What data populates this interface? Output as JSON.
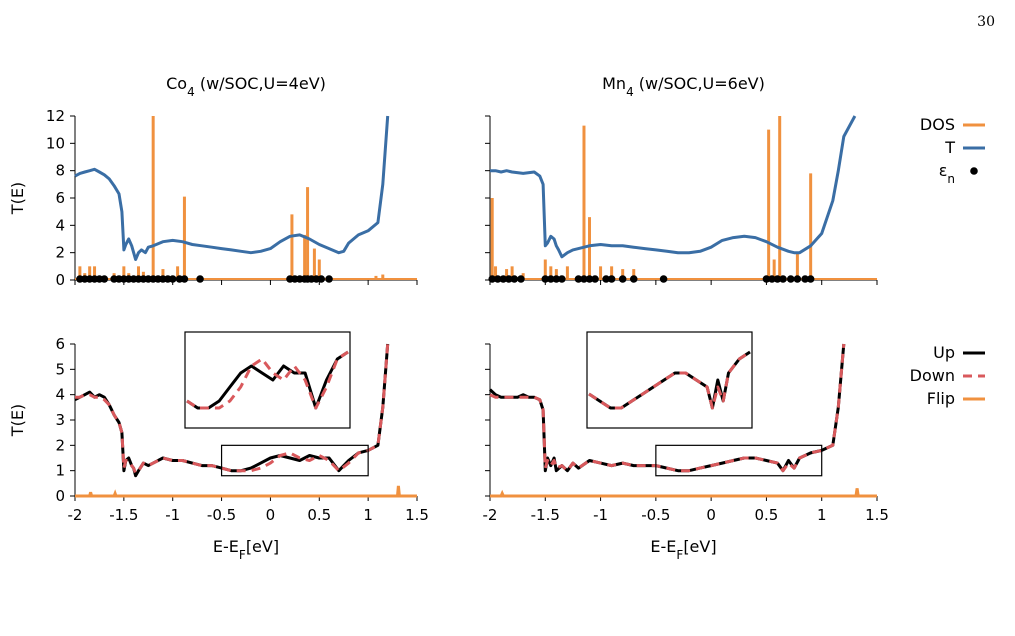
{
  "page_number": "30",
  "colors": {
    "dos": "#f0913f",
    "transmission": "#3a6ea5",
    "levels": "#000000",
    "up": "#000000",
    "down": "#d9595c",
    "flip": "#f0913f",
    "frame": "#000000"
  },
  "legends": {
    "top": [
      {
        "label": "DOS",
        "style": "orange-line"
      },
      {
        "label": "T",
        "style": "blue-line"
      },
      {
        "label": "ε",
        "sub": "n",
        "style": "black-dot"
      }
    ],
    "bottom": [
      {
        "label": "Up",
        "style": "black-solid"
      },
      {
        "label": "Down",
        "style": "red-dashed"
      },
      {
        "label": "Flip",
        "style": "orange-line"
      }
    ]
  },
  "chart_data": [
    {
      "id": "co4-top",
      "type": "line",
      "title": "Co",
      "title_sub": "4",
      "title_rest": " (w/SOC,U=4eV)",
      "xlabel": "",
      "ylabel": "T(E)",
      "xlim": [
        -2,
        1.5
      ],
      "ylim": [
        0,
        12
      ],
      "yticks": [
        "0",
        "2",
        "4",
        "6",
        "8",
        "10",
        "12"
      ],
      "xticks": [],
      "grid": false,
      "transmission": {
        "x": [
          -2.0,
          -1.95,
          -1.9,
          -1.85,
          -1.8,
          -1.75,
          -1.7,
          -1.65,
          -1.6,
          -1.55,
          -1.52,
          -1.5,
          -1.48,
          -1.45,
          -1.42,
          -1.38,
          -1.35,
          -1.32,
          -1.28,
          -1.25,
          -1.2,
          -1.1,
          -1.0,
          -0.9,
          -0.8,
          -0.7,
          -0.6,
          -0.5,
          -0.4,
          -0.3,
          -0.2,
          -0.1,
          0.0,
          0.1,
          0.2,
          0.3,
          0.4,
          0.5,
          0.6,
          0.7,
          0.75,
          0.8,
          0.9,
          1.0,
          1.1,
          1.15,
          1.2
        ],
        "y": [
          7.6,
          7.8,
          7.9,
          8.0,
          8.1,
          7.9,
          7.7,
          7.4,
          6.9,
          6.3,
          5.0,
          2.2,
          2.6,
          3.0,
          2.5,
          1.5,
          2.0,
          2.2,
          2.0,
          2.4,
          2.5,
          2.8,
          2.9,
          2.8,
          2.6,
          2.5,
          2.4,
          2.3,
          2.2,
          2.1,
          2.0,
          2.1,
          2.3,
          2.8,
          3.2,
          3.3,
          3.0,
          2.6,
          2.3,
          2.0,
          2.1,
          2.7,
          3.3,
          3.6,
          4.2,
          7.0,
          12.0
        ]
      },
      "dos_peaks": {
        "x": [
          -1.95,
          -1.9,
          -1.85,
          -1.8,
          -1.6,
          -1.5,
          -1.45,
          -1.35,
          -1.3,
          -1.2,
          -1.1,
          -0.95,
          -0.88,
          0.22,
          0.35,
          0.38,
          0.45,
          0.5,
          1.08,
          1.15
        ],
        "y": [
          1.0,
          0.5,
          1.0,
          1.0,
          0.5,
          1.0,
          0.5,
          1.0,
          0.6,
          12.0,
          0.8,
          1.0,
          6.1,
          4.8,
          3.3,
          6.8,
          2.3,
          1.5,
          0.3,
          0.4
        ]
      },
      "levels": [
        -1.95,
        -1.9,
        -1.85,
        -1.8,
        -1.75,
        -1.7,
        -1.6,
        -1.55,
        -1.5,
        -1.45,
        -1.4,
        -1.35,
        -1.3,
        -1.25,
        -1.2,
        -1.15,
        -1.1,
        -1.05,
        -1.0,
        -0.93,
        -0.88,
        -0.72,
        0.2,
        0.25,
        0.3,
        0.35,
        0.38,
        0.42,
        0.47,
        0.52,
        0.6
      ]
    },
    {
      "id": "mn4-top",
      "type": "line",
      "title": "Mn",
      "title_sub": "4",
      "title_rest": " (w/SOC,U=6eV)",
      "xlabel": "",
      "ylabel": "",
      "xlim": [
        -2,
        1.5
      ],
      "ylim": [
        0,
        12
      ],
      "yticks": [],
      "xticks": [],
      "grid": false,
      "transmission": {
        "x": [
          -2.0,
          -1.95,
          -1.9,
          -1.85,
          -1.8,
          -1.7,
          -1.6,
          -1.55,
          -1.52,
          -1.5,
          -1.48,
          -1.45,
          -1.42,
          -1.4,
          -1.38,
          -1.35,
          -1.3,
          -1.25,
          -1.2,
          -1.1,
          -1.0,
          -0.9,
          -0.8,
          -0.7,
          -0.6,
          -0.5,
          -0.4,
          -0.3,
          -0.2,
          -0.1,
          0.0,
          0.1,
          0.2,
          0.3,
          0.4,
          0.5,
          0.6,
          0.7,
          0.75,
          0.8,
          0.9,
          1.0,
          1.1,
          1.15,
          1.2,
          1.3
        ],
        "y": [
          8.0,
          8.0,
          7.9,
          8.0,
          7.9,
          7.8,
          7.9,
          7.6,
          7.0,
          2.5,
          2.7,
          3.2,
          3.0,
          2.5,
          2.2,
          1.7,
          2.0,
          2.2,
          2.3,
          2.5,
          2.6,
          2.5,
          2.5,
          2.4,
          2.3,
          2.2,
          2.1,
          2.0,
          2.0,
          2.1,
          2.4,
          2.9,
          3.1,
          3.2,
          3.1,
          2.8,
          2.4,
          2.1,
          2.0,
          2.0,
          2.5,
          3.4,
          5.8,
          8.0,
          10.5,
          12.0
        ]
      },
      "dos_peaks": {
        "x": [
          -1.98,
          -1.95,
          -1.85,
          -1.8,
          -1.7,
          -1.5,
          -1.45,
          -1.4,
          -1.3,
          -1.15,
          -1.1,
          -1.0,
          -0.9,
          -0.8,
          -0.7,
          0.52,
          0.57,
          0.62,
          0.78,
          0.9
        ],
        "y": [
          6.0,
          1.0,
          0.8,
          1.0,
          0.5,
          1.5,
          1.0,
          0.8,
          1.0,
          11.3,
          4.6,
          1.0,
          1.0,
          0.8,
          0.8,
          11.0,
          1.5,
          12.0,
          2.0,
          7.8
        ]
      },
      "levels": [
        -1.98,
        -1.93,
        -1.88,
        -1.83,
        -1.78,
        -1.72,
        -1.5,
        -1.45,
        -1.4,
        -1.35,
        -1.2,
        -1.15,
        -1.1,
        -1.05,
        -0.95,
        -0.9,
        -0.8,
        -0.7,
        -0.43,
        0.5,
        0.55,
        0.6,
        0.65,
        0.72,
        0.78,
        0.85,
        0.9
      ]
    },
    {
      "id": "co4-bottom",
      "type": "line",
      "title": "",
      "xlabel": "E-E",
      "xlabel_sub": "F",
      "xlabel_rest": "[eV]",
      "ylabel": "T(E)",
      "xlim": [
        -2,
        1.5
      ],
      "ylim": [
        0,
        6
      ],
      "yticks": [
        "0",
        "1",
        "2",
        "3",
        "4",
        "5",
        "6"
      ],
      "xticks": [
        "-2",
        "-1.5",
        "-1",
        "-0.5",
        "0",
        "0.5",
        "1",
        "1.5"
      ],
      "grid": false,
      "inset_window": {
        "x": [
          -0.5,
          1.0
        ],
        "y": [
          0.8,
          2.0
        ]
      },
      "up": {
        "x": [
          -2.0,
          -1.95,
          -1.9,
          -1.85,
          -1.8,
          -1.75,
          -1.7,
          -1.65,
          -1.6,
          -1.55,
          -1.52,
          -1.5,
          -1.48,
          -1.45,
          -1.42,
          -1.4,
          -1.38,
          -1.35,
          -1.3,
          -1.25,
          -1.2,
          -1.1,
          -1.0,
          -0.9,
          -0.8,
          -0.7,
          -0.6,
          -0.5,
          -0.4,
          -0.3,
          -0.2,
          -0.1,
          0.0,
          0.1,
          0.2,
          0.3,
          0.4,
          0.5,
          0.6,
          0.7,
          0.8,
          0.9,
          1.0,
          1.1,
          1.15,
          1.2
        ],
        "y": [
          3.8,
          3.9,
          4.0,
          4.1,
          3.9,
          4.0,
          3.9,
          3.6,
          3.2,
          2.9,
          2.5,
          1.0,
          1.4,
          1.5,
          1.2,
          1.1,
          0.8,
          1.0,
          1.3,
          1.2,
          1.3,
          1.5,
          1.4,
          1.4,
          1.3,
          1.2,
          1.2,
          1.1,
          1.0,
          1.0,
          1.1,
          1.3,
          1.5,
          1.6,
          1.5,
          1.4,
          1.6,
          1.5,
          1.5,
          1.0,
          1.4,
          1.7,
          1.8,
          2.0,
          3.5,
          6.0
        ]
      },
      "down": {
        "x": [
          -2.0,
          -1.95,
          -1.9,
          -1.85,
          -1.8,
          -1.75,
          -1.7,
          -1.65,
          -1.6,
          -1.55,
          -1.52,
          -1.5,
          -1.48,
          -1.45,
          -1.42,
          -1.4,
          -1.38,
          -1.35,
          -1.3,
          -1.25,
          -1.2,
          -1.1,
          -1.0,
          -0.9,
          -0.8,
          -0.7,
          -0.6,
          -0.5,
          -0.4,
          -0.3,
          -0.2,
          -0.1,
          0.0,
          0.1,
          0.2,
          0.3,
          0.4,
          0.5,
          0.6,
          0.7,
          0.8,
          0.9,
          1.0,
          1.1,
          1.15,
          1.2
        ],
        "y": [
          3.9,
          3.9,
          4.0,
          4.0,
          3.9,
          3.9,
          3.8,
          3.6,
          3.2,
          2.9,
          2.5,
          1.1,
          1.4,
          1.4,
          1.2,
          1.1,
          0.9,
          1.0,
          1.3,
          1.2,
          1.3,
          1.5,
          1.4,
          1.4,
          1.3,
          1.2,
          1.2,
          1.1,
          1.0,
          1.0,
          1.0,
          1.1,
          1.3,
          1.6,
          1.7,
          1.5,
          1.4,
          1.6,
          1.4,
          1.0,
          1.3,
          1.7,
          1.8,
          2.0,
          3.5,
          6.0
        ]
      },
      "flip": {
        "x": [
          -2.0,
          -1.85,
          -1.84,
          -1.83,
          -1.6,
          -1.59,
          -1.58,
          1.3,
          1.31,
          1.32,
          1.33,
          1.5
        ],
        "y": [
          0.0,
          0.0,
          0.15,
          0.0,
          0.0,
          0.1,
          0.0,
          0.0,
          0.4,
          0.0,
          0.0,
          0.0
        ]
      }
    },
    {
      "id": "mn4-bottom",
      "type": "line",
      "title": "",
      "xlabel": "E-E",
      "xlabel_sub": "F",
      "xlabel_rest": "[eV]",
      "ylabel": "",
      "xlim": [
        -2,
        1.5
      ],
      "ylim": [
        0,
        6
      ],
      "yticks": [],
      "xticks": [
        "-2",
        "-1.5",
        "-1",
        "-0.5",
        "0",
        "0.5",
        "1",
        "1.5"
      ],
      "grid": false,
      "inset_window": {
        "x": [
          -0.5,
          1.0
        ],
        "y": [
          0.8,
          2.0
        ]
      },
      "up": {
        "x": [
          -2.0,
          -1.95,
          -1.9,
          -1.85,
          -1.8,
          -1.75,
          -1.7,
          -1.65,
          -1.6,
          -1.55,
          -1.52,
          -1.5,
          -1.48,
          -1.45,
          -1.42,
          -1.4,
          -1.35,
          -1.3,
          -1.25,
          -1.2,
          -1.1,
          -1.0,
          -0.9,
          -0.8,
          -0.7,
          -0.6,
          -0.5,
          -0.4,
          -0.3,
          -0.2,
          -0.1,
          0.0,
          0.1,
          0.2,
          0.3,
          0.4,
          0.5,
          0.6,
          0.65,
          0.7,
          0.75,
          0.8,
          0.9,
          1.0,
          1.1,
          1.15,
          1.2
        ],
        "y": [
          4.2,
          4.0,
          3.9,
          3.9,
          3.9,
          3.9,
          4.0,
          3.9,
          3.9,
          3.8,
          3.4,
          1.0,
          1.5,
          1.2,
          1.5,
          1.0,
          1.2,
          1.0,
          1.3,
          1.1,
          1.4,
          1.3,
          1.2,
          1.3,
          1.2,
          1.2,
          1.2,
          1.1,
          1.0,
          1.0,
          1.1,
          1.2,
          1.3,
          1.4,
          1.5,
          1.5,
          1.4,
          1.3,
          1.0,
          1.4,
          1.1,
          1.5,
          1.7,
          1.8,
          2.0,
          3.5,
          6.0
        ]
      },
      "down": {
        "x": [
          -2.0,
          -1.95,
          -1.9,
          -1.85,
          -1.8,
          -1.75,
          -1.7,
          -1.65,
          -1.6,
          -1.55,
          -1.52,
          -1.5,
          -1.48,
          -1.45,
          -1.42,
          -1.4,
          -1.35,
          -1.3,
          -1.25,
          -1.2,
          -1.1,
          -1.0,
          -0.9,
          -0.8,
          -0.7,
          -0.6,
          -0.5,
          -0.4,
          -0.3,
          -0.2,
          -0.1,
          0.0,
          0.1,
          0.2,
          0.3,
          0.4,
          0.5,
          0.6,
          0.65,
          0.7,
          0.75,
          0.8,
          0.9,
          1.0,
          1.1,
          1.15,
          1.2
        ],
        "y": [
          4.0,
          3.9,
          3.9,
          3.9,
          3.9,
          3.9,
          3.9,
          3.9,
          3.9,
          3.8,
          3.4,
          1.1,
          1.4,
          1.2,
          1.4,
          1.1,
          1.2,
          1.0,
          1.3,
          1.1,
          1.4,
          1.3,
          1.2,
          1.3,
          1.2,
          1.2,
          1.2,
          1.1,
          1.0,
          1.0,
          1.1,
          1.2,
          1.3,
          1.4,
          1.5,
          1.5,
          1.4,
          1.3,
          1.0,
          1.3,
          1.1,
          1.5,
          1.7,
          1.8,
          2.0,
          3.5,
          6.0
        ]
      },
      "flip": {
        "x": [
          -2.0,
          -1.9,
          -1.89,
          -1.88,
          1.3,
          1.31,
          1.32,
          1.33,
          1.5
        ],
        "y": [
          0.0,
          0.0,
          0.1,
          0.0,
          0.0,
          0.0,
          0.3,
          0.0,
          0.0
        ]
      }
    }
  ]
}
